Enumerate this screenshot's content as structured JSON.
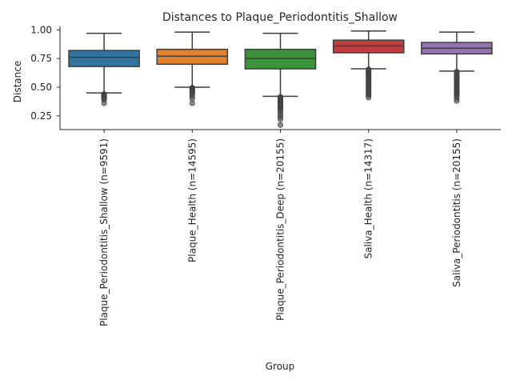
{
  "chart_data": {
    "type": "box",
    "title": "Distances to Plaque_Periodontitis_Shallow",
    "xlabel": "Group",
    "ylabel": "Distance",
    "ylim": [
      0.13,
      1.03
    ],
    "yticks": [
      0.25,
      0.5,
      0.75,
      1.0
    ],
    "ytick_labels": [
      "0.25",
      "0.50",
      "0.75",
      "1.00"
    ],
    "grid": false,
    "categories": [
      "Plaque_Periodontitis_Shallow (n=9591)",
      "Plaque_Health (n=14595)",
      "Plaque_Periodontitis_Deep (n=20155)",
      "Saliva_Health (n=14317)",
      "Saliva_Periodontitis (n=20155)"
    ],
    "colors": [
      "#3274a1",
      "#e1812c",
      "#3a923a",
      "#c03d3e",
      "#9372b2"
    ],
    "boxes": [
      {
        "whislo": 0.45,
        "q1": 0.68,
        "med": 0.76,
        "q3": 0.82,
        "whishi": 0.97,
        "fliers": [
          0.44,
          0.435,
          0.43,
          0.425,
          0.42,
          0.41,
          0.4,
          0.39,
          0.36
        ]
      },
      {
        "whislo": 0.5,
        "q1": 0.7,
        "med": 0.77,
        "q3": 0.83,
        "whishi": 0.98,
        "fliers": [
          0.495,
          0.49,
          0.485,
          0.48,
          0.47,
          0.46,
          0.45,
          0.44,
          0.42,
          0.4,
          0.36
        ]
      },
      {
        "whislo": 0.42,
        "q1": 0.66,
        "med": 0.75,
        "q3": 0.83,
        "whishi": 0.97,
        "fliers": [
          0.415,
          0.41,
          0.4,
          0.39,
          0.38,
          0.37,
          0.36,
          0.35,
          0.34,
          0.33,
          0.32,
          0.31,
          0.3,
          0.28,
          0.26,
          0.24,
          0.22,
          0.17
        ]
      },
      {
        "whislo": 0.66,
        "q1": 0.8,
        "med": 0.86,
        "q3": 0.91,
        "whishi": 0.99,
        "fliers": [
          0.655,
          0.65,
          0.64,
          0.63,
          0.62,
          0.61,
          0.6,
          0.59,
          0.58,
          0.57,
          0.56,
          0.55,
          0.54,
          0.53,
          0.52,
          0.51,
          0.5,
          0.49,
          0.48,
          0.47,
          0.46,
          0.45,
          0.44,
          0.43,
          0.41
        ]
      },
      {
        "whislo": 0.64,
        "q1": 0.79,
        "med": 0.84,
        "q3": 0.89,
        "whishi": 0.98,
        "fliers": [
          0.635,
          0.63,
          0.62,
          0.61,
          0.6,
          0.59,
          0.58,
          0.57,
          0.56,
          0.55,
          0.54,
          0.53,
          0.52,
          0.51,
          0.5,
          0.49,
          0.48,
          0.47,
          0.46,
          0.45,
          0.44,
          0.43,
          0.42,
          0.4,
          0.38
        ]
      }
    ]
  }
}
